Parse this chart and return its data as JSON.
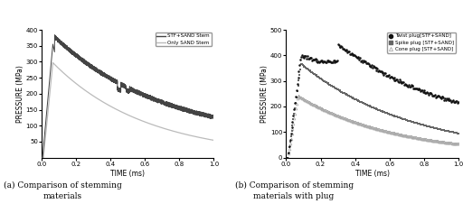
{
  "panel_a": {
    "title": "(a) Comparison of stemming\nmaterials",
    "xlabel": "TIME (ms)",
    "ylabel": "PRESSURE (MPa)",
    "xlim": [
      0,
      1.0
    ],
    "ylim": [
      0,
      400
    ],
    "yticks": [
      50,
      100,
      150,
      200,
      250,
      300,
      350,
      400
    ],
    "xticks": [
      0.0,
      0.2,
      0.4,
      0.6,
      0.8,
      1.0
    ],
    "legend": [
      "STF+SAND Stem",
      "Only SAND Stem"
    ],
    "line1_color": "#444444",
    "line2_color": "#bbbbbb"
  },
  "panel_b": {
    "title": "(b) Comparison of stemming\nmaterials with plug",
    "xlabel": "TIME (ms)",
    "ylabel": "PRESSURE (MPa)",
    "xlim": [
      0,
      1.0
    ],
    "ylim": [
      0,
      500
    ],
    "yticks": [
      0,
      100,
      200,
      300,
      400,
      500
    ],
    "xticks": [
      0.0,
      0.2,
      0.4,
      0.6,
      0.8,
      1.0
    ],
    "legend": [
      "Twist plug[STF+SAND]",
      "Spike plug [STF+SAND]",
      "Cone plug [STF+SAND]"
    ],
    "line1_color": "#111111",
    "line2_color": "#666666",
    "line3_color": "#aaaaaa"
  }
}
